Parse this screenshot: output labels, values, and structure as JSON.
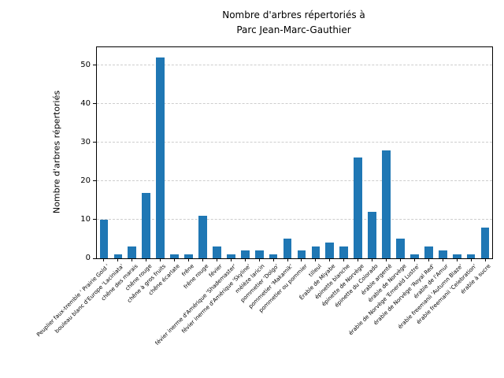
{
  "chart_data": {
    "type": "bar",
    "title": "Nombre d'arbres répertoriés à\nParc Jean-Marc-Gauthier",
    "ylabel": "Nombre d'arbres répertoriés",
    "xlabel": "",
    "categories": [
      "Peuplier faux-tremble ' Prairie Gold '",
      "bouleau blanc d'Europe 'Laciniata'",
      "chêne des marais",
      "chêne rouge",
      "chêne à gros fruits",
      "chêne écarlate",
      "frêne",
      "frêne rouge",
      "févier",
      "févier inerme d'Amérique 'Shademaster'",
      "févier inerme d'Amérique 'Skyline'",
      "mélèze laricin",
      "pommetier 'Dolgo'",
      "pommetier 'Makamik'",
      "pommetier ou pommier",
      "tilleul",
      "Érable de Miyabe",
      "épinette blanche",
      "épinette de Norvège",
      "épinette du Colorado",
      "érable argenté",
      "érable de Norvège",
      "érable de Norvège 'Emerald Lustre'",
      "érable de Norvège 'Royal Red'",
      "érable de l'Amur",
      "érable freemanii 'Autumn Blaze'",
      "érable freemanii 'Celebration'",
      "érable à sucre"
    ],
    "values": [
      10,
      1,
      3,
      17,
      52,
      1,
      1,
      11,
      3,
      1,
      2,
      2,
      1,
      5,
      2,
      3,
      4,
      3,
      26,
      12,
      28,
      5,
      1,
      3,
      2,
      1,
      1,
      8
    ],
    "yticks": [
      0,
      10,
      20,
      30,
      40,
      50
    ],
    "ylim": [
      0,
      54.6
    ],
    "grid": true,
    "grid_style": "dashed",
    "legend_position": "none",
    "bar_color": "#1f77b4",
    "background_color": "#ffffff"
  }
}
